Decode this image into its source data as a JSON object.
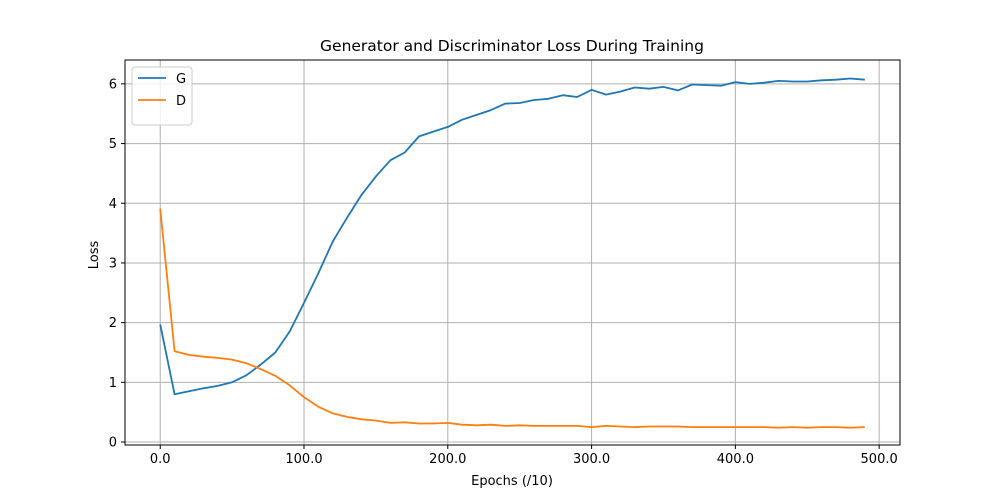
{
  "chart_data": {
    "type": "line",
    "title": "Generator and Discriminator Loss During Training",
    "xlabel": "Epochs (/10)",
    "ylabel": "Loss",
    "xlim": [
      -24.5,
      514.5
    ],
    "ylim": [
      -0.05,
      6.4
    ],
    "x_ticks": [
      0,
      100,
      200,
      300,
      400,
      500
    ],
    "x_tick_labels": [
      "0.0",
      "100.0",
      "200.0",
      "300.0",
      "400.0",
      "500.0"
    ],
    "y_ticks": [
      0,
      1,
      2,
      3,
      4,
      5,
      6
    ],
    "y_tick_labels": [
      "0",
      "1",
      "2",
      "3",
      "4",
      "5",
      "6"
    ],
    "grid": true,
    "legend": "upper-left",
    "x": [
      0,
      10,
      20,
      30,
      40,
      50,
      60,
      70,
      80,
      90,
      100,
      110,
      120,
      130,
      140,
      150,
      160,
      170,
      180,
      190,
      200,
      210,
      220,
      230,
      240,
      250,
      260,
      270,
      280,
      290,
      300,
      310,
      320,
      330,
      340,
      350,
      360,
      370,
      380,
      390,
      400,
      410,
      420,
      430,
      440,
      450,
      460,
      470,
      480,
      490
    ],
    "series": [
      {
        "name": "G",
        "color": "#1f77b4",
        "values": [
          1.97,
          0.8,
          0.85,
          0.9,
          0.94,
          1.0,
          1.12,
          1.3,
          1.5,
          1.85,
          2.33,
          2.83,
          3.36,
          3.76,
          4.14,
          4.45,
          4.72,
          4.85,
          5.12,
          5.2,
          5.28,
          5.4,
          5.48,
          5.56,
          5.67,
          5.68,
          5.73,
          5.75,
          5.81,
          5.78,
          5.9,
          5.82,
          5.87,
          5.94,
          5.92,
          5.95,
          5.89,
          5.99,
          5.98,
          5.97,
          6.03,
          6.0,
          6.02,
          6.05,
          6.04,
          6.04,
          6.06,
          6.07,
          6.09,
          6.07
        ]
      },
      {
        "name": "D",
        "color": "#ff7f0e",
        "values": [
          3.91,
          1.52,
          1.46,
          1.43,
          1.41,
          1.38,
          1.32,
          1.22,
          1.11,
          0.95,
          0.75,
          0.59,
          0.48,
          0.42,
          0.38,
          0.36,
          0.32,
          0.33,
          0.31,
          0.31,
          0.32,
          0.29,
          0.28,
          0.29,
          0.27,
          0.28,
          0.27,
          0.27,
          0.27,
          0.27,
          0.25,
          0.27,
          0.26,
          0.25,
          0.26,
          0.26,
          0.26,
          0.25,
          0.25,
          0.25,
          0.25,
          0.25,
          0.25,
          0.24,
          0.25,
          0.24,
          0.25,
          0.25,
          0.24,
          0.25
        ]
      }
    ]
  }
}
